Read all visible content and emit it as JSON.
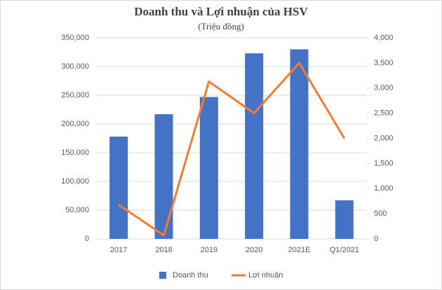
{
  "chart_data": {
    "type": "bar",
    "title": "Doanh thu và Lợi nhuận của HSV",
    "subtitle": "(Triệu đồng)",
    "categories": [
      "2017",
      "2018",
      "2019",
      "2020",
      "2021E",
      "Q1/2021"
    ],
    "series": [
      {
        "name": "Doanh thu",
        "color": "#4472c4",
        "values": [
          178000,
          217000,
          247000,
          323000,
          330000,
          67000
        ]
      },
      {
        "name": "Lợi nhuận",
        "color": "#ed7d31",
        "type": "line",
        "axis": "y2",
        "values": [
          680,
          70,
          3130,
          2500,
          3500,
          2000
        ]
      }
    ],
    "ylim": [
      0,
      350000
    ],
    "yticks": [
      0,
      {
        "value": 50000,
        "label": "50,000"
      },
      {
        "value": 100000,
        "label": "100,000"
      },
      {
        "value": 150000,
        "label": "150,000"
      },
      {
        "value": 200000,
        "label": "200,000"
      },
      {
        "value": 250000,
        "label": "250,000"
      },
      {
        "value": 300000,
        "label": "300,000"
      },
      {
        "value": 350000,
        "label": "350,000"
      }
    ],
    "y2lim": [
      0,
      4000
    ],
    "y2ticks": [
      0,
      500,
      {
        "value": 1000,
        "label": "1,000"
      },
      {
        "value": 1500,
        "label": "1,500"
      },
      {
        "value": 2000,
        "label": "2,000"
      },
      {
        "value": 2500,
        "label": "2,500"
      },
      {
        "value": 3000,
        "label": "3,000"
      },
      {
        "value": 3500,
        "label": "3,500"
      },
      {
        "value": 4000,
        "label": "4,000"
      }
    ],
    "grid": true,
    "legend": "bottom"
  }
}
